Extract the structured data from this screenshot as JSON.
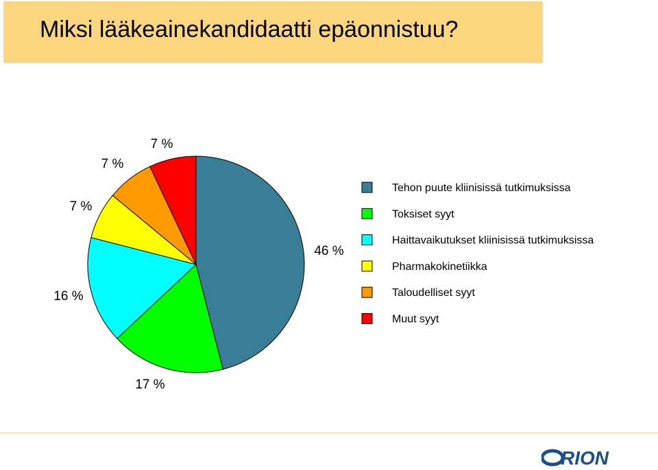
{
  "title": "Miksi lääkeainekandidaatti epäonnistuu?",
  "chart_data": {
    "type": "pie",
    "categories": [
      "Tehon puute kliinisissä tutkimuksissa",
      "Toksiset syyt",
      "Haittavaikutukset kliinisissä tutkimuksissa",
      "Pharmakokinetiikka",
      "Taloudelliset syyt",
      "Muut syyt"
    ],
    "values": [
      46,
      17,
      16,
      7,
      7,
      7
    ],
    "labels": [
      "46 %",
      "17 %",
      "16 %",
      "7 %",
      "7 %",
      "7 %"
    ],
    "colors": [
      "#3a7d96",
      "#00ff00",
      "#00ffff",
      "#ffff00",
      "#ff9900",
      "#ff0000"
    ],
    "legend_position": "right"
  },
  "logo": {
    "text": "ORION"
  }
}
